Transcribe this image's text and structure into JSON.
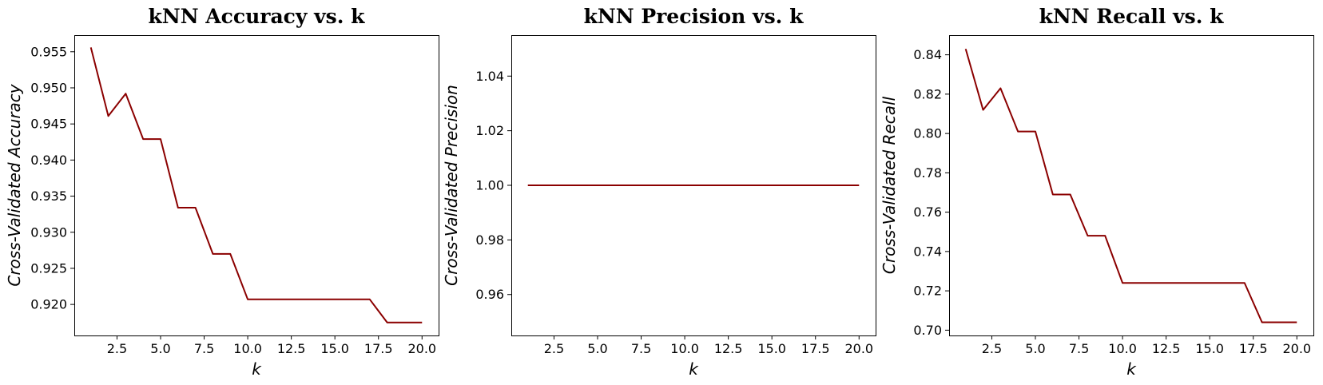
{
  "chart_data": [
    {
      "type": "line",
      "title": "kNN Accuracy vs. k",
      "xlabel": "k",
      "ylabel": "Cross-Validated Accuracy",
      "xlim": [
        0.05,
        20.95
      ],
      "ylim": [
        0.9157,
        0.9573
      ],
      "xticks": [
        2.5,
        5.0,
        7.5,
        10.0,
        12.5,
        15.0,
        17.5,
        20.0
      ],
      "xtick_labels": [
        "2.5",
        "5.0",
        "7.5",
        "10.0",
        "12.5",
        "15.0",
        "17.5",
        "20.0"
      ],
      "yticks": [
        0.92,
        0.925,
        0.93,
        0.935,
        0.94,
        0.945,
        0.95,
        0.955
      ],
      "ytick_labels": [
        "0.920",
        "0.925",
        "0.930",
        "0.935",
        "0.940",
        "0.945",
        "0.950",
        "0.955"
      ],
      "grid": false,
      "series": [
        {
          "color": "#8b0000",
          "x": [
            1,
            2,
            3,
            4,
            5,
            6,
            7,
            8,
            9,
            10,
            11,
            12,
            13,
            14,
            15,
            16,
            17,
            18,
            19,
            20
          ],
          "values": [
            0.9556,
            0.9461,
            0.9492,
            0.9429,
            0.9429,
            0.9334,
            0.9334,
            0.927,
            0.927,
            0.9207,
            0.9207,
            0.9207,
            0.9207,
            0.9207,
            0.9207,
            0.9207,
            0.9207,
            0.9175,
            0.9175,
            0.9175
          ]
        }
      ]
    },
    {
      "type": "line",
      "title": "kNN Precision vs. k",
      "xlabel": "k",
      "ylabel": "Cross-Validated Precision",
      "xlim": [
        0.05,
        20.95
      ],
      "ylim": [
        0.945,
        1.055
      ],
      "xticks": [
        2.5,
        5.0,
        7.5,
        10.0,
        12.5,
        15.0,
        17.5,
        20.0
      ],
      "xtick_labels": [
        "2.5",
        "5.0",
        "7.5",
        "10.0",
        "12.5",
        "15.0",
        "17.5",
        "20.0"
      ],
      "yticks": [
        0.96,
        0.98,
        1.0,
        1.02,
        1.04
      ],
      "ytick_labels": [
        "0.96",
        "0.98",
        "1.00",
        "1.02",
        "1.04"
      ],
      "grid": false,
      "series": [
        {
          "color": "#8b0000",
          "x": [
            1,
            2,
            3,
            4,
            5,
            6,
            7,
            8,
            9,
            10,
            11,
            12,
            13,
            14,
            15,
            16,
            17,
            18,
            19,
            20
          ],
          "values": [
            1.0,
            1.0,
            1.0,
            1.0,
            1.0,
            1.0,
            1.0,
            1.0,
            1.0,
            1.0,
            1.0,
            1.0,
            1.0,
            1.0,
            1.0,
            1.0,
            1.0,
            1.0,
            1.0,
            1.0
          ]
        }
      ]
    },
    {
      "type": "line",
      "title": "kNN Recall vs. k",
      "xlabel": "k",
      "ylabel": "Cross-Validated Recall",
      "xlim": [
        0.05,
        20.95
      ],
      "ylim": [
        0.6973,
        0.85
      ],
      "xticks": [
        2.5,
        5.0,
        7.5,
        10.0,
        12.5,
        15.0,
        17.5,
        20.0
      ],
      "xtick_labels": [
        "2.5",
        "5.0",
        "7.5",
        "10.0",
        "12.5",
        "15.0",
        "17.5",
        "20.0"
      ],
      "yticks": [
        0.7,
        0.72,
        0.74,
        0.76,
        0.78,
        0.8,
        0.82,
        0.84
      ],
      "ytick_labels": [
        "0.70",
        "0.72",
        "0.74",
        "0.76",
        "0.78",
        "0.80",
        "0.82",
        "0.84"
      ],
      "grid": false,
      "series": [
        {
          "color": "#8b0000",
          "x": [
            1,
            2,
            3,
            4,
            5,
            6,
            7,
            8,
            9,
            10,
            11,
            12,
            13,
            14,
            15,
            16,
            17,
            18,
            19,
            20
          ],
          "values": [
            0.843,
            0.812,
            0.823,
            0.801,
            0.801,
            0.769,
            0.769,
            0.748,
            0.748,
            0.724,
            0.724,
            0.724,
            0.724,
            0.724,
            0.724,
            0.724,
            0.724,
            0.704,
            0.704,
            0.704
          ]
        }
      ]
    }
  ]
}
